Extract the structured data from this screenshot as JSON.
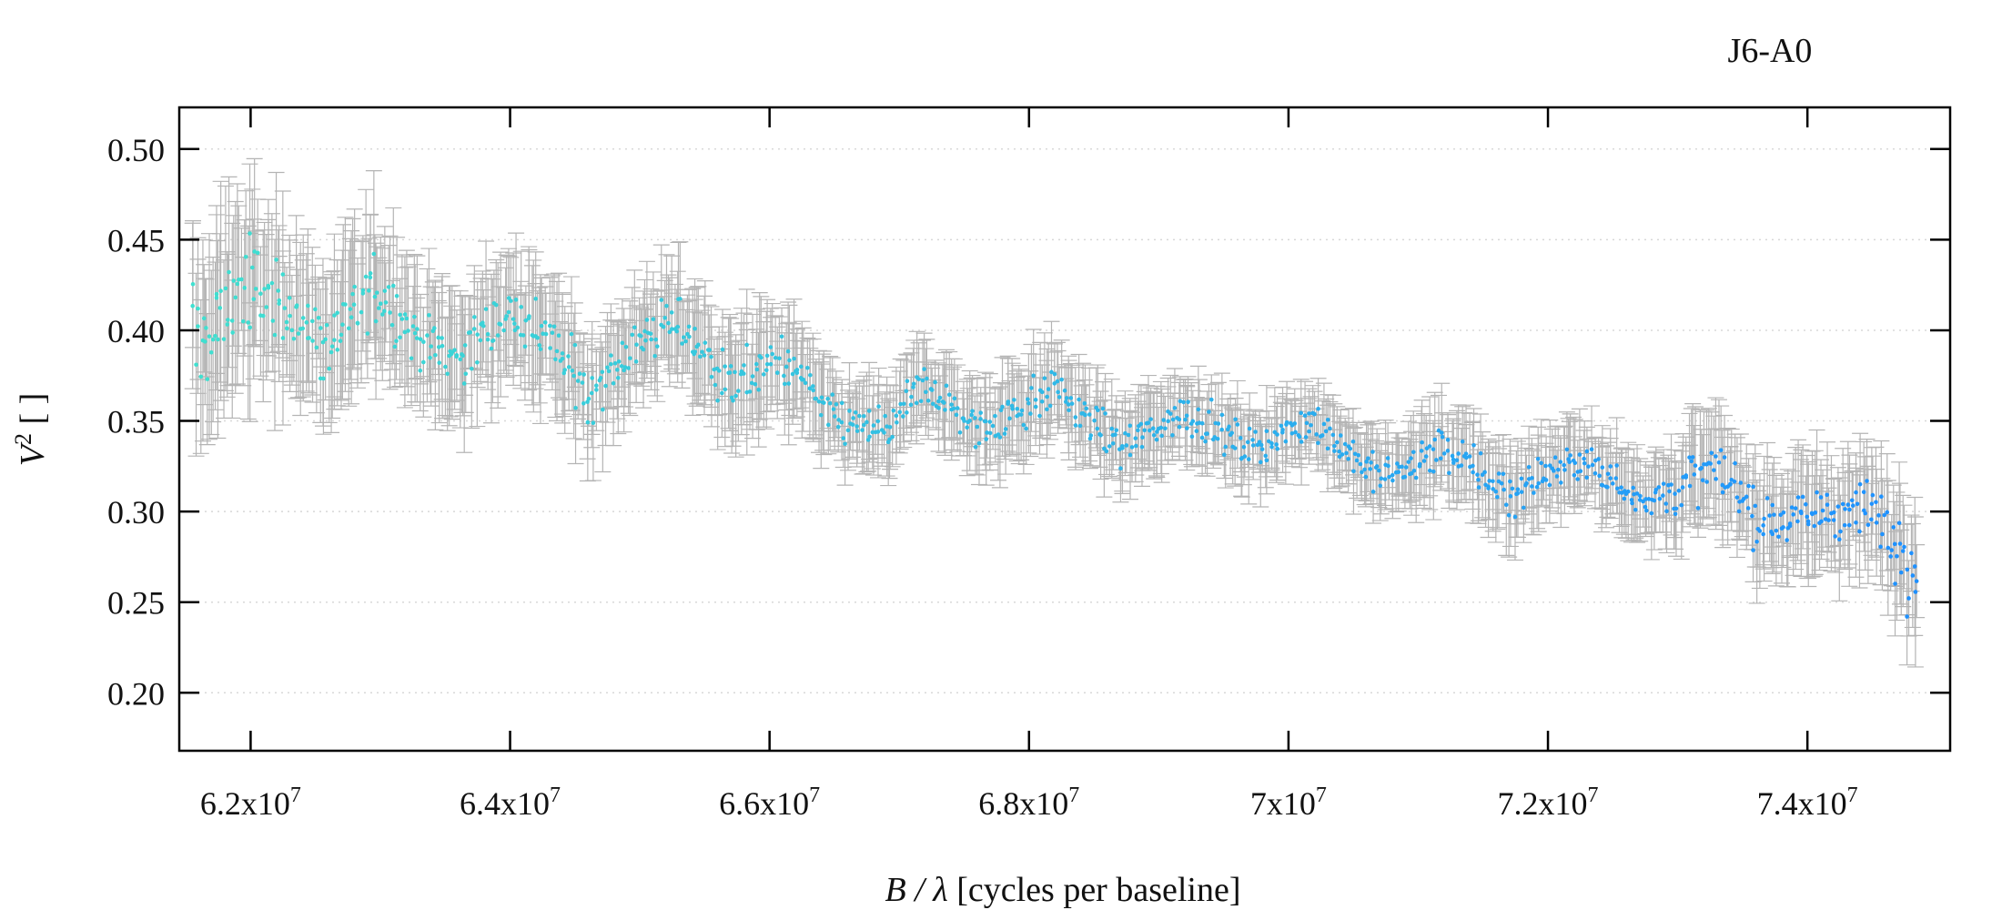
{
  "chart_data": {
    "type": "scatter",
    "title": "J6-A0",
    "xlabel_italic": "B / λ",
    "xlabel_rest": " [cycles per baseline]",
    "ylabel_italic": "V",
    "ylabel_sup": "2",
    "ylabel_rest": " [ ]",
    "xlim": [
      61450000,
      75100000
    ],
    "ylim": [
      0.168,
      0.523
    ],
    "x_ticks": [
      {
        "value": 62000000,
        "mantissa": "6.2x10",
        "exp": "7"
      },
      {
        "value": 64000000,
        "mantissa": "6.4x10",
        "exp": "7"
      },
      {
        "value": 66000000,
        "mantissa": "6.6x10",
        "exp": "7"
      },
      {
        "value": 68000000,
        "mantissa": "6.8x10",
        "exp": "7"
      },
      {
        "value": 70000000,
        "mantissa": "7x10",
        "exp": "7"
      },
      {
        "value": 72000000,
        "mantissa": "7.2x10",
        "exp": "7"
      },
      {
        "value": 74000000,
        "mantissa": "7.4x10",
        "exp": "7"
      }
    ],
    "y_ticks": [
      {
        "value": 0.2,
        "label": "0.20"
      },
      {
        "value": 0.25,
        "label": "0.25"
      },
      {
        "value": 0.3,
        "label": "0.30"
      },
      {
        "value": 0.35,
        "label": "0.35"
      },
      {
        "value": 0.4,
        "label": "0.40"
      },
      {
        "value": 0.45,
        "label": "0.45"
      },
      {
        "value": 0.5,
        "label": "0.50"
      }
    ],
    "grid": "horizontal dotted",
    "colors": {
      "errorbar": "#b4b4b4",
      "point_start": "#40e0d0",
      "point_end": "#1e90ff",
      "axis": "#000000",
      "grid": "#d8d8d8"
    },
    "series": [
      {
        "marker": "point with x and y error bars",
        "profile": [
          {
            "x": 61550000,
            "y": 0.4,
            "yerr": 0.04,
            "sd": 0.025
          },
          {
            "x": 61700000,
            "y": 0.395,
            "yerr": 0.045,
            "sd": 0.03
          },
          {
            "x": 61900000,
            "y": 0.425,
            "yerr": 0.04,
            "sd": 0.025
          },
          {
            "x": 62200000,
            "y": 0.418,
            "yerr": 0.038,
            "sd": 0.022
          },
          {
            "x": 62600000,
            "y": 0.39,
            "yerr": 0.035,
            "sd": 0.022
          },
          {
            "x": 62950000,
            "y": 0.425,
            "yerr": 0.035,
            "sd": 0.02
          },
          {
            "x": 63300000,
            "y": 0.395,
            "yerr": 0.03,
            "sd": 0.015
          },
          {
            "x": 63600000,
            "y": 0.385,
            "yerr": 0.03,
            "sd": 0.015
          },
          {
            "x": 64000000,
            "y": 0.41,
            "yerr": 0.03,
            "sd": 0.015
          },
          {
            "x": 64300000,
            "y": 0.395,
            "yerr": 0.03,
            "sd": 0.018
          },
          {
            "x": 64600000,
            "y": 0.365,
            "yerr": 0.025,
            "sd": 0.015
          },
          {
            "x": 65000000,
            "y": 0.395,
            "yerr": 0.025,
            "sd": 0.015
          },
          {
            "x": 65300000,
            "y": 0.405,
            "yerr": 0.025,
            "sd": 0.015
          },
          {
            "x": 65700000,
            "y": 0.37,
            "yerr": 0.025,
            "sd": 0.015
          },
          {
            "x": 66100000,
            "y": 0.385,
            "yerr": 0.025,
            "sd": 0.012
          },
          {
            "x": 66500000,
            "y": 0.35,
            "yerr": 0.02,
            "sd": 0.012
          },
          {
            "x": 66900000,
            "y": 0.345,
            "yerr": 0.02,
            "sd": 0.012
          },
          {
            "x": 67200000,
            "y": 0.37,
            "yerr": 0.02,
            "sd": 0.012
          },
          {
            "x": 67600000,
            "y": 0.345,
            "yerr": 0.02,
            "sd": 0.012
          },
          {
            "x": 68200000,
            "y": 0.368,
            "yerr": 0.02,
            "sd": 0.012
          },
          {
            "x": 68700000,
            "y": 0.335,
            "yerr": 0.02,
            "sd": 0.01
          },
          {
            "x": 69200000,
            "y": 0.355,
            "yerr": 0.018,
            "sd": 0.01
          },
          {
            "x": 69700000,
            "y": 0.335,
            "yerr": 0.018,
            "sd": 0.01
          },
          {
            "x": 70200000,
            "y": 0.35,
            "yerr": 0.018,
            "sd": 0.01
          },
          {
            "x": 70700000,
            "y": 0.318,
            "yerr": 0.018,
            "sd": 0.01
          },
          {
            "x": 71200000,
            "y": 0.335,
            "yerr": 0.02,
            "sd": 0.012
          },
          {
            "x": 71700000,
            "y": 0.31,
            "yerr": 0.02,
            "sd": 0.012
          },
          {
            "x": 72200000,
            "y": 0.33,
            "yerr": 0.018,
            "sd": 0.01
          },
          {
            "x": 72800000,
            "y": 0.305,
            "yerr": 0.02,
            "sd": 0.012
          },
          {
            "x": 73300000,
            "y": 0.325,
            "yerr": 0.025,
            "sd": 0.015
          },
          {
            "x": 73600000,
            "y": 0.295,
            "yerr": 0.025,
            "sd": 0.015
          },
          {
            "x": 74100000,
            "y": 0.3,
            "yerr": 0.025,
            "sd": 0.015
          },
          {
            "x": 74500000,
            "y": 0.3,
            "yerr": 0.025,
            "sd": 0.015
          },
          {
            "x": 74850000,
            "y": 0.27,
            "yerr": 0.03,
            "sd": 0.025
          }
        ],
        "n_points": 1100
      }
    ]
  }
}
